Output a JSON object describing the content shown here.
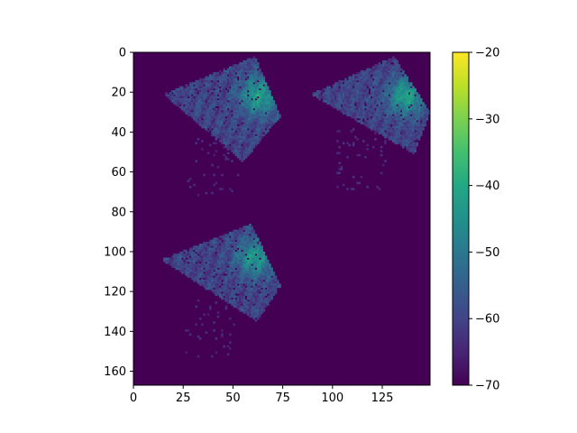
{
  "chart_data": {
    "type": "heatmap",
    "title": "",
    "xlabel": "",
    "ylabel": "",
    "xlim": [
      0,
      149
    ],
    "ylim": [
      167,
      0
    ],
    "x_ticks": [
      0,
      25,
      50,
      75,
      100,
      125
    ],
    "x_tick_labels": [
      "0",
      "25",
      "50",
      "75",
      "100",
      "125"
    ],
    "y_ticks": [
      0,
      20,
      40,
      60,
      80,
      100,
      120,
      140,
      160
    ],
    "y_tick_labels": [
      "0",
      "20",
      "40",
      "60",
      "80",
      "100",
      "120",
      "140",
      "160"
    ],
    "background_value": -70,
    "colormap": "viridis",
    "colorbar": {
      "range": [
        -70,
        -20
      ],
      "ticks": [
        -70,
        -60,
        -50,
        -40,
        -30,
        -20
      ],
      "tick_labels": [
        "−70",
        "−60",
        "−50",
        "−40",
        "−30",
        "−20"
      ]
    },
    "patches": [
      {
        "corners": [
          [
            15,
            21
          ],
          [
            61,
            2
          ],
          [
            74,
            32
          ],
          [
            55,
            55
          ]
        ],
        "hotspot": [
          63,
          22
        ],
        "peak_value": -42,
        "base_value": -60
      },
      {
        "corners": [
          [
            89,
            21
          ],
          [
            131,
            2
          ],
          [
            149,
            30
          ],
          [
            141,
            51
          ]
        ],
        "hotspot": [
          137,
          22
        ],
        "peak_value": -42,
        "base_value": -60
      },
      {
        "corners": [
          [
            14,
            104
          ],
          [
            59,
            86
          ],
          [
            74,
            117
          ],
          [
            62,
            135
          ]
        ],
        "hotspot": [
          61,
          103
        ],
        "peak_value": -44,
        "base_value": -60
      }
    ],
    "grid": false,
    "legend": "none"
  }
}
